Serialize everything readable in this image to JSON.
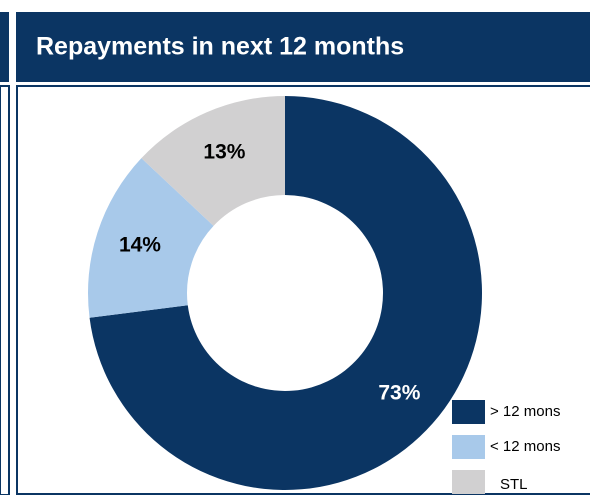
{
  "chart_data": {
    "type": "donut",
    "title": "Repayments in next 12 months",
    "categories": [
      "> 12 mons",
      "< 12 mons",
      "STL"
    ],
    "values": [
      73,
      14,
      13
    ],
    "value_labels": [
      "73%",
      "14%",
      "13%"
    ],
    "colors": [
      "#0b3563",
      "#a8c9ea",
      "#d1d0d1"
    ]
  }
}
